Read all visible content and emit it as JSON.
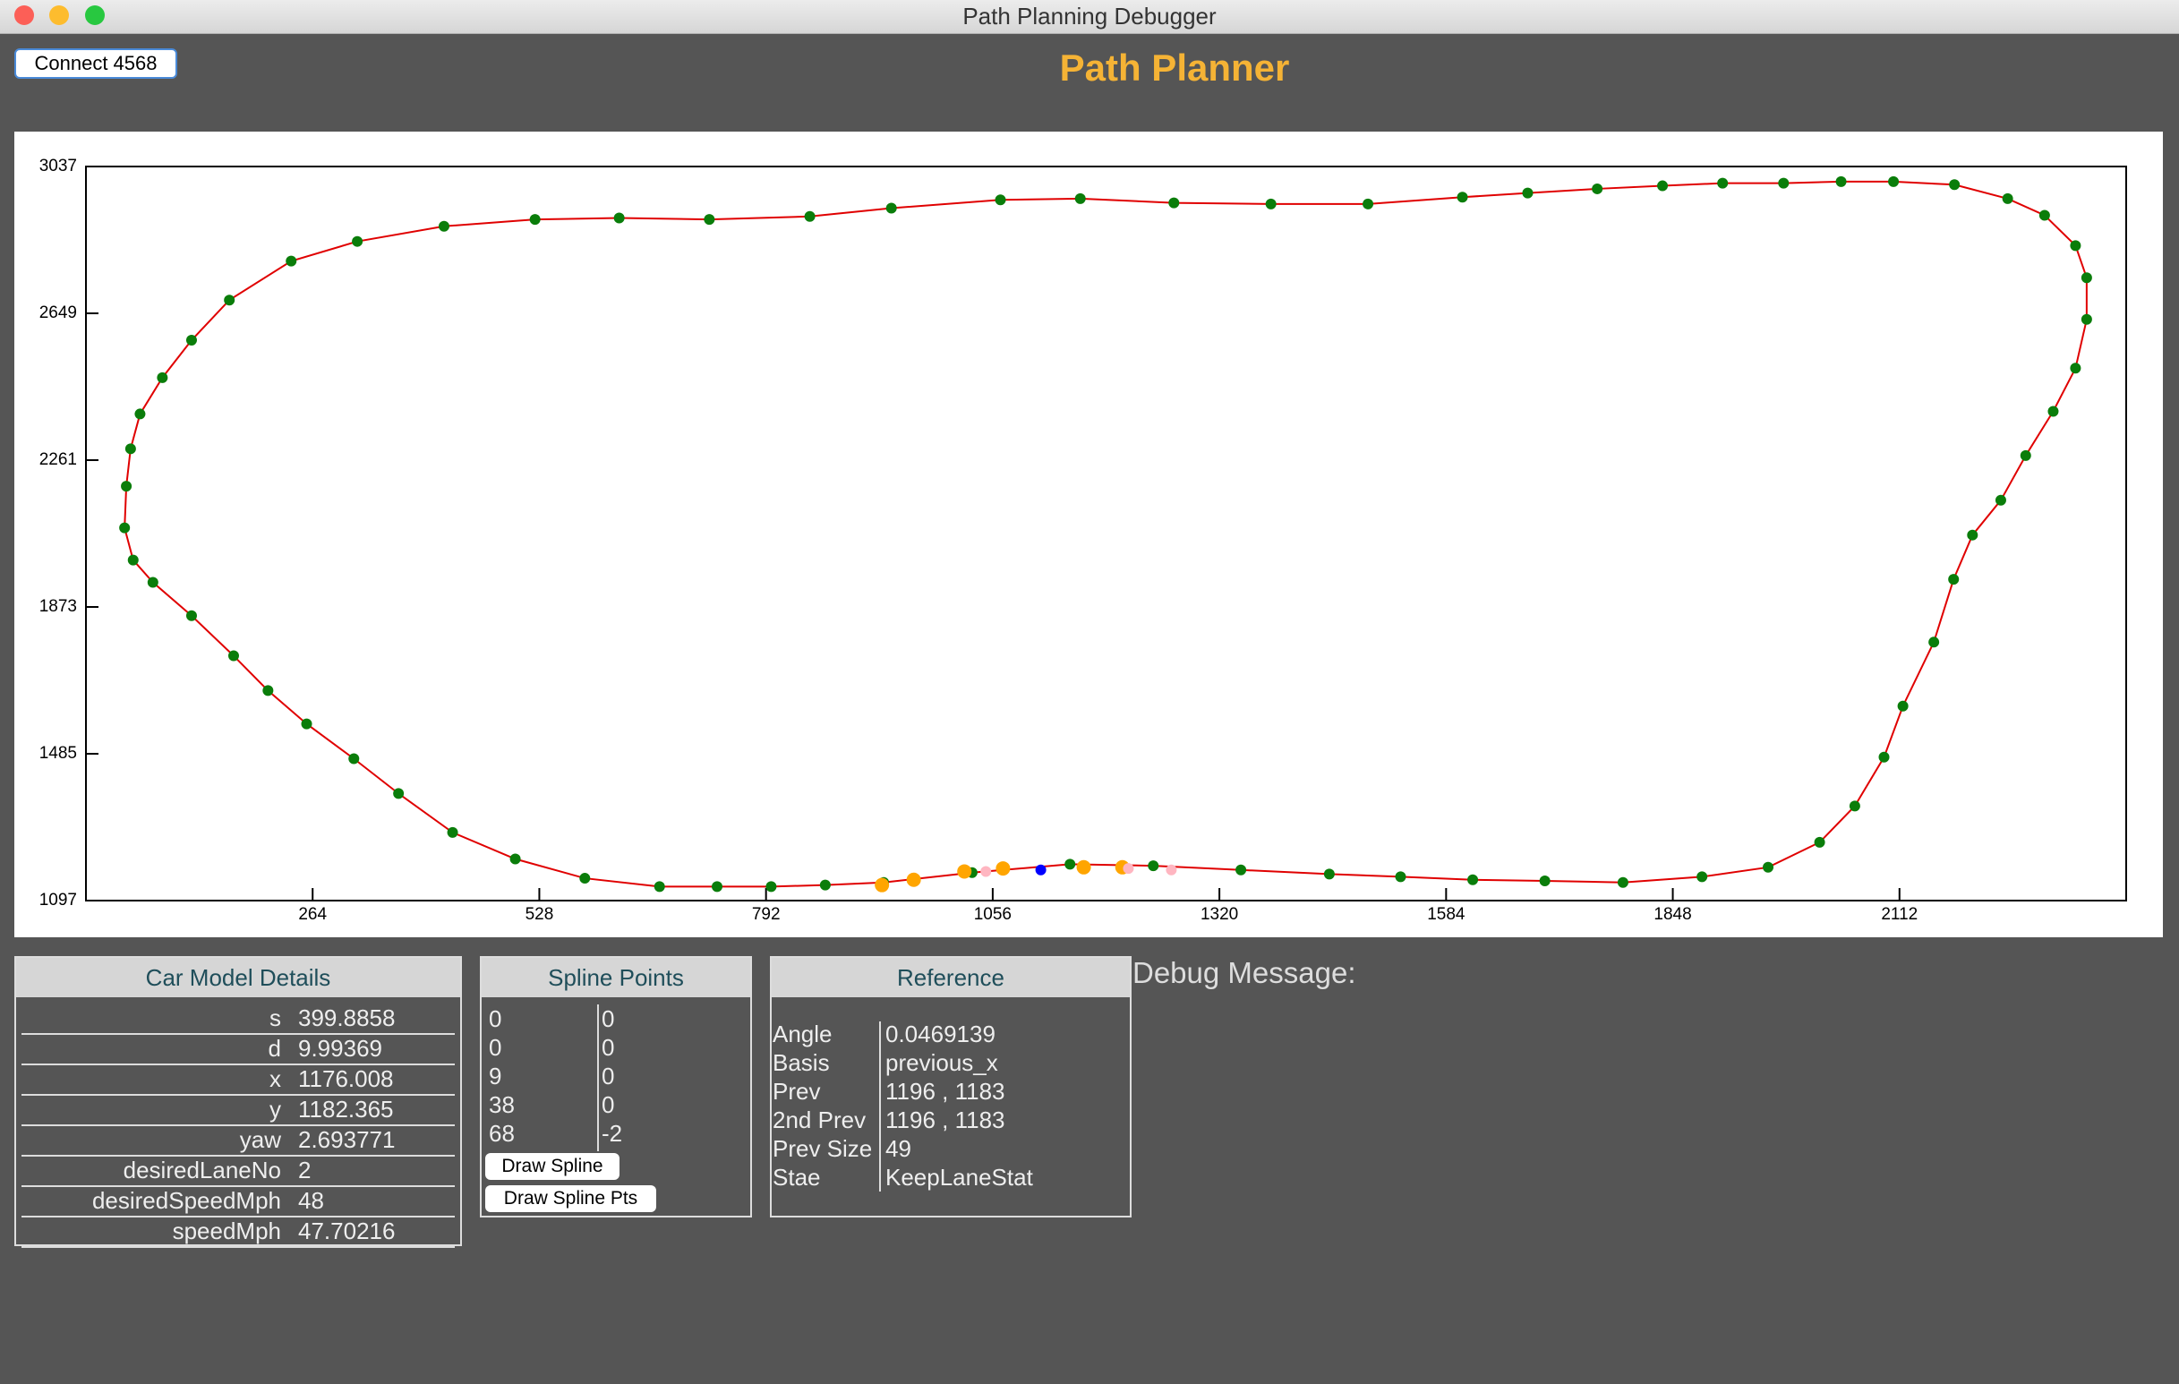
{
  "window": {
    "title": "Path Planning Debugger"
  },
  "toolbar": {
    "connect_button": "Connect 4568"
  },
  "header": {
    "title": "Path Planner"
  },
  "chart_data": {
    "type": "scatter",
    "xlim": [
      0,
      2376
    ],
    "ylim": [
      1097,
      3037
    ],
    "xticks": [
      264,
      528,
      792,
      1056,
      1320,
      1584,
      1848,
      2112
    ],
    "yticks": [
      1097,
      1485,
      1873,
      2261,
      2649,
      3037
    ],
    "line_color": "#e00000",
    "series": [
      {
        "color": "#0a7d0a",
        "x": [
          668,
          735,
          798,
          861,
          929,
          1032,
          1146,
          1243,
          1345,
          1448,
          1531,
          1615,
          1699,
          1790,
          1882,
          1959,
          2019,
          2060,
          2094,
          2116,
          2152,
          2175,
          2197,
          2230,
          2259,
          2291,
          2317,
          2330,
          2330,
          2317,
          2281,
          2238,
          2176,
          2105,
          2044,
          1977,
          1906,
          1836,
          1760,
          1679,
          1603,
          1493,
          1380,
          1267,
          1158,
          1065,
          938,
          843,
          726,
          621,
          523,
          417,
          316,
          239,
          167,
          123,
          89,
          63,
          52,
          47,
          45,
          55,
          78,
          123,
          172,
          212,
          257,
          312,
          364,
          427,
          500,
          581
        ],
        "y": [
          1134,
          1134,
          1134,
          1138,
          1145,
          1171,
          1193,
          1189,
          1178,
          1167,
          1160,
          1152,
          1149,
          1145,
          1160,
          1185,
          1251,
          1347,
          1476,
          1611,
          1780,
          1946,
          2063,
          2155,
          2273,
          2390,
          2504,
          2633,
          2743,
          2828,
          2908,
          2952,
          2989,
          2997,
          2997,
          2993,
          2993,
          2986,
          2978,
          2967,
          2956,
          2938,
          2938,
          2941,
          2952,
          2949,
          2927,
          2905,
          2897,
          2901,
          2897,
          2879,
          2839,
          2787,
          2684,
          2578,
          2479,
          2383,
          2291,
          2192,
          2082,
          1997,
          1938,
          1850,
          1744,
          1652,
          1564,
          1472,
          1380,
          1277,
          1207,
          1156
        ]
      },
      {
        "color": "#ffa500",
        "x": [
          927,
          964,
          1023,
          1068,
          1162,
          1207
        ],
        "y": [
          1138,
          1152,
          1174,
          1182,
          1185,
          1185
        ]
      },
      {
        "color": "#ffb6c1",
        "x": [
          1048,
          1214,
          1264
        ],
        "y": [
          1174,
          1182,
          1178
        ]
      },
      {
        "color": "#0000ff",
        "x": [
          1112
        ],
        "y": [
          1178
        ]
      }
    ]
  },
  "car_model": {
    "title": "Car Model Details",
    "rows": [
      [
        "s",
        "399.8858"
      ],
      [
        "d",
        "9.99369"
      ],
      [
        "x",
        "1176.008"
      ],
      [
        "y",
        "1182.365"
      ],
      [
        "yaw",
        "2.693771"
      ],
      [
        "desiredLaneNo",
        "2"
      ],
      [
        "desiredSpeedMph",
        "48"
      ],
      [
        "speedMph",
        "47.70216"
      ]
    ]
  },
  "spline_points": {
    "title": "Spline Points",
    "rows": [
      [
        "0",
        "0"
      ],
      [
        "0",
        "0"
      ],
      [
        "9",
        "0"
      ],
      [
        "38",
        "0"
      ],
      [
        "68",
        "-2"
      ]
    ],
    "buttons": [
      "Draw Spline",
      "Draw Spline Pts"
    ]
  },
  "reference": {
    "title": "Reference",
    "rows": [
      [
        "Angle",
        "0.0469139"
      ],
      [
        "Basis",
        "previous_x"
      ],
      [
        "Prev",
        "1196 , 1183"
      ],
      [
        "2nd Prev",
        "1196 , 1183"
      ],
      [
        "Prev Size",
        "49"
      ],
      [
        "Stae",
        "KeepLaneStat"
      ]
    ]
  },
  "debug": {
    "label": "Debug Message:"
  }
}
